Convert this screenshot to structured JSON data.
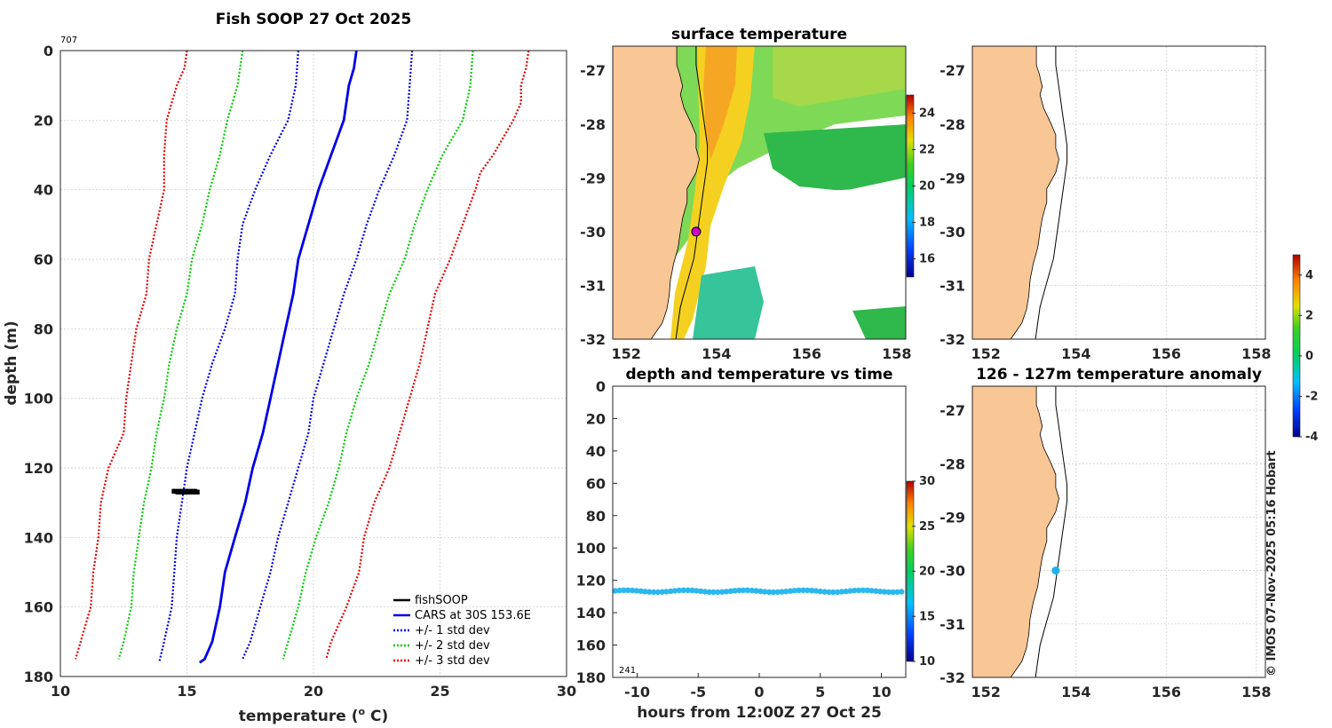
{
  "chart_data": [
    {
      "type": "line",
      "title": "Fish SOOP 27 Oct 2025",
      "xlabel": "temperature (",
      "xlabel_sup": "o",
      "xlabel_end": " C)",
      "ylabel": "depth (m)",
      "corner_label": "707",
      "xlim": [
        10,
        30
      ],
      "ylim": [
        0,
        180
      ],
      "xticks": [
        "10",
        "15",
        "20",
        "25",
        "30"
      ],
      "yticks": [
        "0",
        "20",
        "40",
        "60",
        "80",
        "100",
        "120",
        "140",
        "160",
        "180"
      ],
      "legend": [
        "fishSOOP",
        "CARS at 30S 153.6E",
        "+/- 1 std dev",
        "+/- 2 std dev",
        "+/- 3 std dev"
      ],
      "series": [
        {
          "name": "CARS at 30S 153.6E",
          "color": "#0000e6",
          "style": "solid",
          "points": [
            [
              21.7,
              0
            ],
            [
              21.6,
              5
            ],
            [
              21.4,
              10
            ],
            [
              21.2,
              20
            ],
            [
              20.7,
              30
            ],
            [
              20.2,
              40
            ],
            [
              19.8,
              50
            ],
            [
              19.4,
              60
            ],
            [
              19.2,
              70
            ],
            [
              18.9,
              80
            ],
            [
              18.6,
              90
            ],
            [
              18.3,
              100
            ],
            [
              18.0,
              110
            ],
            [
              17.6,
              120
            ],
            [
              17.3,
              130
            ],
            [
              16.9,
              140
            ],
            [
              16.5,
              150
            ],
            [
              16.3,
              160
            ],
            [
              16.0,
              170
            ],
            [
              15.7,
              175
            ],
            [
              15.5,
              176
            ]
          ]
        },
        {
          "name": "+1 std dev",
          "color": "#0000e6",
          "style": "dot",
          "points": [
            [
              23.9,
              0
            ],
            [
              23.8,
              10
            ],
            [
              23.7,
              20
            ],
            [
              23.2,
              30
            ],
            [
              22.6,
              40
            ],
            [
              22.1,
              50
            ],
            [
              21.7,
              60
            ],
            [
              21.2,
              70
            ],
            [
              20.8,
              80
            ],
            [
              20.4,
              90
            ],
            [
              20.0,
              100
            ],
            [
              19.8,
              110
            ],
            [
              19.4,
              120
            ],
            [
              19.0,
              130
            ],
            [
              18.6,
              140
            ],
            [
              18.3,
              150
            ],
            [
              17.9,
              160
            ],
            [
              17.5,
              170
            ],
            [
              17.2,
              175
            ]
          ]
        },
        {
          "name": "-1 std dev",
          "color": "#0000e6",
          "style": "dot",
          "points": [
            [
              19.4,
              0
            ],
            [
              19.3,
              10
            ],
            [
              19.0,
              20
            ],
            [
              18.3,
              30
            ],
            [
              17.7,
              40
            ],
            [
              17.2,
              50
            ],
            [
              17.0,
              60
            ],
            [
              16.9,
              70
            ],
            [
              16.5,
              80
            ],
            [
              16.0,
              90
            ],
            [
              15.6,
              100
            ],
            [
              15.3,
              110
            ],
            [
              15.0,
              120
            ],
            [
              14.8,
              130
            ],
            [
              14.6,
              140
            ],
            [
              14.5,
              150
            ],
            [
              14.4,
              160
            ],
            [
              14.1,
              170
            ],
            [
              13.9,
              176
            ]
          ]
        },
        {
          "name": "+2 std dev",
          "color": "#00cc00",
          "style": "dot",
          "points": [
            [
              26.3,
              0
            ],
            [
              26.2,
              10
            ],
            [
              25.9,
              20
            ],
            [
              25.1,
              30
            ],
            [
              24.5,
              40
            ],
            [
              24.0,
              50
            ],
            [
              23.6,
              60
            ],
            [
              23.0,
              70
            ],
            [
              22.6,
              80
            ],
            [
              22.2,
              90
            ],
            [
              21.7,
              100
            ],
            [
              21.3,
              110
            ],
            [
              21.0,
              120
            ],
            [
              20.6,
              130
            ],
            [
              20.1,
              140
            ],
            [
              19.7,
              150
            ],
            [
              19.4,
              160
            ],
            [
              19.0,
              170
            ],
            [
              18.8,
              175
            ]
          ]
        },
        {
          "name": "-2 std dev",
          "color": "#00cc00",
          "style": "dot",
          "points": [
            [
              17.2,
              0
            ],
            [
              17.0,
              10
            ],
            [
              16.6,
              20
            ],
            [
              16.3,
              30
            ],
            [
              15.9,
              40
            ],
            [
              15.6,
              50
            ],
            [
              15.2,
              60
            ],
            [
              15.0,
              70
            ],
            [
              14.6,
              80
            ],
            [
              14.3,
              90
            ],
            [
              14.1,
              100
            ],
            [
              13.8,
              110
            ],
            [
              13.6,
              120
            ],
            [
              13.3,
              130
            ],
            [
              13.1,
              140
            ],
            [
              12.9,
              150
            ],
            [
              12.8,
              160
            ],
            [
              12.5,
              170
            ],
            [
              12.3,
              175
            ]
          ]
        },
        {
          "name": "+3 std dev",
          "color": "#e60000",
          "style": "dot",
          "points": [
            [
              28.5,
              0
            ],
            [
              28.4,
              5
            ],
            [
              28.2,
              10
            ],
            [
              28.2,
              15
            ],
            [
              27.9,
              20
            ],
            [
              27.5,
              25
            ],
            [
              27.1,
              30
            ],
            [
              26.6,
              35
            ],
            [
              26.4,
              40
            ],
            [
              25.9,
              50
            ],
            [
              25.4,
              60
            ],
            [
              24.8,
              70
            ],
            [
              24.5,
              80
            ],
            [
              24.2,
              90
            ],
            [
              23.8,
              100
            ],
            [
              23.4,
              110
            ],
            [
              23.0,
              120
            ],
            [
              22.4,
              130
            ],
            [
              22.0,
              140
            ],
            [
              21.8,
              150
            ],
            [
              21.3,
              160
            ],
            [
              20.7,
              170
            ],
            [
              20.5,
              175
            ]
          ]
        },
        {
          "name": "-3 std dev",
          "color": "#e60000",
          "style": "dot",
          "points": [
            [
              15.0,
              0
            ],
            [
              14.9,
              5
            ],
            [
              14.6,
              10
            ],
            [
              14.2,
              20
            ],
            [
              14.1,
              30
            ],
            [
              14.1,
              40
            ],
            [
              13.8,
              50
            ],
            [
              13.5,
              60
            ],
            [
              13.4,
              70
            ],
            [
              13.0,
              80
            ],
            [
              12.8,
              90
            ],
            [
              12.6,
              100
            ],
            [
              12.5,
              110
            ],
            [
              11.9,
              120
            ],
            [
              11.6,
              130
            ],
            [
              11.5,
              140
            ],
            [
              11.3,
              150
            ],
            [
              11.2,
              160
            ],
            [
              10.8,
              170
            ],
            [
              10.6,
              175
            ]
          ]
        }
      ],
      "fishsoop_segment": {
        "color": "#000000",
        "tmin": 14.4,
        "tmax": 15.5,
        "depth_top": 126.3,
        "depth_bottom": 127.4
      }
    },
    {
      "type": "heatmap",
      "title": "surface temperature",
      "xticks": [
        "152",
        "154",
        "156",
        "158"
      ],
      "yticks": [
        "-27",
        "-28",
        "-29",
        "-30",
        "-31",
        "-32"
      ],
      "xlim": [
        151.7,
        158.2
      ],
      "ylim": [
        -32,
        -26.55
      ],
      "colorbar_ticks": [
        "16",
        "18",
        "20",
        "22",
        "24"
      ],
      "colorbar_range": [
        15,
        25
      ],
      "marker": {
        "lon": 153.55,
        "lat": -30.0,
        "color": "#cc00cc"
      }
    },
    {
      "type": "scatter",
      "title": "depth and temperature vs time",
      "xlabel": "hours from 12:00Z 27 Oct 25",
      "corner_label": "241",
      "xticks": [
        "-10",
        "-5",
        "0",
        "5",
        "10"
      ],
      "yticks": [
        "0",
        "20",
        "40",
        "60",
        "80",
        "100",
        "120",
        "140",
        "160",
        "180"
      ],
      "xlim": [
        -12,
        12
      ],
      "ylim": [
        0,
        180
      ],
      "depth": 127,
      "temperature": 15,
      "colorbar_ticks": [
        "10",
        "15",
        "20",
        "25",
        "30"
      ],
      "colorbar_range": [
        10,
        30
      ]
    },
    {
      "type": "heatmap",
      "title": "",
      "xticks": [
        "152",
        "154",
        "156",
        "158"
      ],
      "yticks": [
        "-27",
        "-28",
        "-29",
        "-30",
        "-31",
        "-32"
      ]
    },
    {
      "type": "scatter",
      "title": "126 - 127m temperature anomaly",
      "xticks": [
        "152",
        "154",
        "156",
        "158"
      ],
      "yticks": [
        "-27",
        "-28",
        "-29",
        "-30",
        "-31",
        "-32"
      ],
      "marker": {
        "lon": 153.55,
        "lat": -30.0,
        "color": "#1ab2ef"
      },
      "colorbar_ticks": [
        "4",
        "2",
        "0",
        "-2",
        "-4"
      ],
      "colorbar_range": [
        -4,
        5
      ]
    }
  ],
  "colors": {
    "land": "#f9c695",
    "axis": "#262626"
  },
  "footer": {
    "credit": "© IMOS 07-Nov-2025 05:16 Hobart"
  }
}
